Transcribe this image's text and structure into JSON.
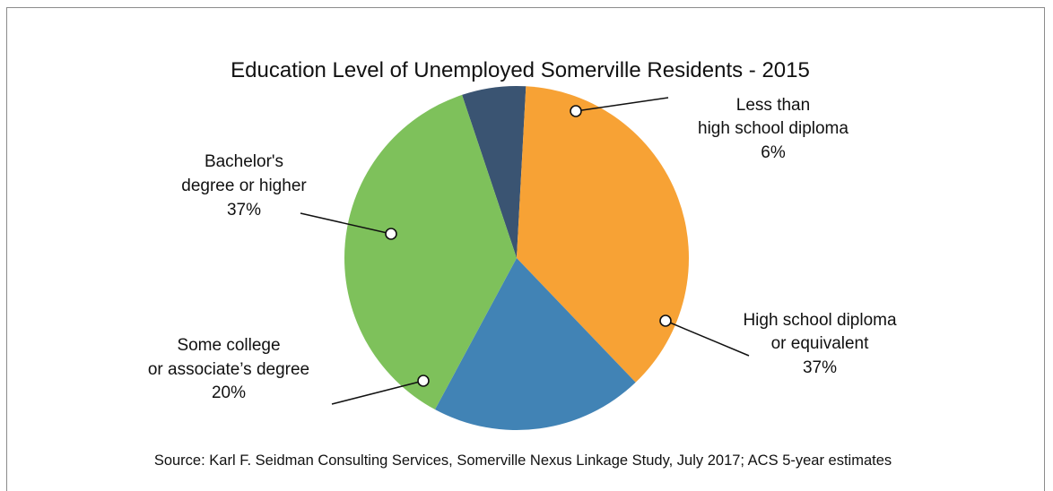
{
  "chart_data": {
    "type": "pie",
    "title": "Education Level of Unemployed Somerville Residents - 2015",
    "slices": [
      {
        "label_lines": [
          "Less than",
          "high school diploma"
        ],
        "value_label": "6%",
        "value": 6,
        "color": "#3a5472"
      },
      {
        "label_lines": [
          "High school diploma",
          "or equivalent"
        ],
        "value_label": "37%",
        "value": 37,
        "color": "#f7a235"
      },
      {
        "label_lines": [
          "Some college",
          "or associate’s degree"
        ],
        "value_label": "20%",
        "value": 20,
        "color": "#4183b5"
      },
      {
        "label_lines": [
          "Bachelor's",
          "degree or higher"
        ],
        "value_label": "37%",
        "value": 37,
        "color": "#7ec15b"
      }
    ],
    "source": "Source: Karl F. Seidman Consulting Services, Somerville Nexus Linkage Study, July 2017; ACS 5-year estimates"
  }
}
